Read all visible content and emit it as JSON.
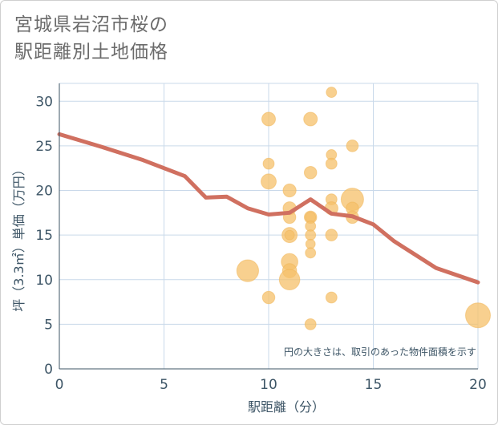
{
  "title_line1": "宮城県岩沼市桜の",
  "title_line2": "駅距離別土地価格",
  "note": "円の大きさは、取引のあった物件面積を示す",
  "colors": {
    "bubble": "#f5c06a",
    "trend": "#d07060",
    "grid": "#c9d9ea",
    "axis": "#3d5566"
  },
  "chart_data": {
    "type": "scatter",
    "title": "宮城県岩沼市桜の駅距離別土地価格",
    "xlabel": "駅距離（分）",
    "ylabel": "坪（3.3㎡）単価（万円）",
    "xlim": [
      0,
      20
    ],
    "ylim": [
      0,
      32
    ],
    "xticks": [
      "0",
      "5",
      "10",
      "15",
      "20"
    ],
    "yticks": [
      "0",
      "5",
      "10",
      "15",
      "20",
      "25",
      "30"
    ],
    "grid": true,
    "bubbles": [
      {
        "x": 9,
        "y": 11,
        "size": 3
      },
      {
        "x": 10,
        "y": 28,
        "size": 1
      },
      {
        "x": 10,
        "y": 23,
        "size": 0.6
      },
      {
        "x": 10,
        "y": 21,
        "size": 1.3
      },
      {
        "x": 10,
        "y": 8,
        "size": 0.8
      },
      {
        "x": 11,
        "y": 20,
        "size": 0.9
      },
      {
        "x": 11,
        "y": 18,
        "size": 0.9
      },
      {
        "x": 11,
        "y": 17,
        "size": 0.8
      },
      {
        "x": 11,
        "y": 15,
        "size": 1.3
      },
      {
        "x": 11,
        "y": 15,
        "size": 0.4
      },
      {
        "x": 11,
        "y": 12,
        "size": 1.6
      },
      {
        "x": 11,
        "y": 11,
        "size": 1.1
      },
      {
        "x": 11,
        "y": 10,
        "size": 2.6
      },
      {
        "x": 12,
        "y": 28,
        "size": 1
      },
      {
        "x": 12,
        "y": 22,
        "size": 0.8
      },
      {
        "x": 12,
        "y": 17,
        "size": 0.8
      },
      {
        "x": 12,
        "y": 17,
        "size": 0.5
      },
      {
        "x": 12,
        "y": 16,
        "size": 0.5
      },
      {
        "x": 12,
        "y": 15,
        "size": 0.5
      },
      {
        "x": 12,
        "y": 14,
        "size": 0.4
      },
      {
        "x": 12,
        "y": 13,
        "size": 0.5
      },
      {
        "x": 12,
        "y": 5,
        "size": 0.6
      },
      {
        "x": 13,
        "y": 31,
        "size": 0.5
      },
      {
        "x": 13,
        "y": 24,
        "size": 0.5
      },
      {
        "x": 13,
        "y": 23,
        "size": 0.6
      },
      {
        "x": 13,
        "y": 19,
        "size": 0.6
      },
      {
        "x": 13,
        "y": 18,
        "size": 0.9
      },
      {
        "x": 13,
        "y": 15,
        "size": 0.7
      },
      {
        "x": 13,
        "y": 8,
        "size": 0.6
      },
      {
        "x": 14,
        "y": 25,
        "size": 0.7
      },
      {
        "x": 14,
        "y": 19,
        "size": 3.2
      },
      {
        "x": 14,
        "y": 18,
        "size": 0.8
      },
      {
        "x": 14,
        "y": 17,
        "size": 0.8
      },
      {
        "x": 20,
        "y": 6,
        "size": 4
      }
    ],
    "trend": {
      "x": [
        0,
        2,
        4,
        6,
        7,
        8,
        9,
        10,
        11,
        12,
        13,
        14,
        15,
        16,
        18,
        20
      ],
      "y": [
        26.3,
        24.9,
        23.4,
        21.6,
        19.2,
        19.3,
        18.0,
        17.3,
        17.5,
        19.0,
        17.4,
        17.1,
        16.2,
        14.3,
        11.3,
        9.7
      ]
    }
  }
}
